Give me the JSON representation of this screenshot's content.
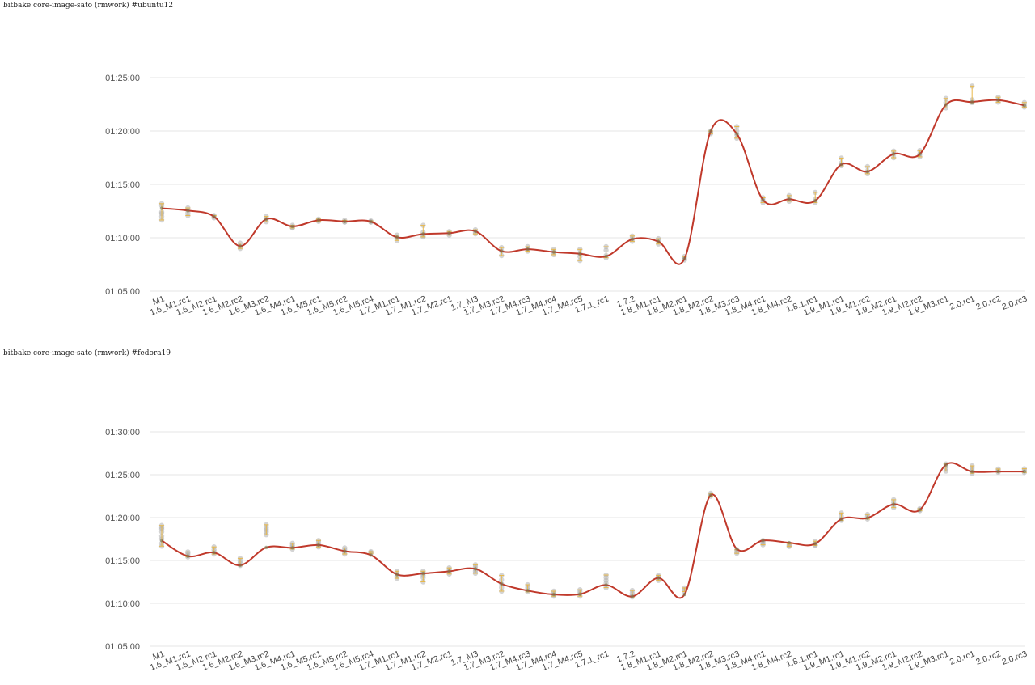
{
  "chart_data": [
    {
      "type": "line",
      "title": "bitbake core-image-sato (rmwork) #ubuntu12",
      "xlabel": "",
      "ylabel": "",
      "yticks": [
        "01:05:00",
        "01:10:00",
        "01:15:00",
        "01:20:00",
        "01:25:00"
      ],
      "ylim_seconds": [
        3900,
        5160
      ],
      "grid": true,
      "line_color": "#c0392b",
      "point_color": "#b0b0b0",
      "errorbar_color": "#e8b84a",
      "categories": [
        "M1",
        "1.6_M1.rc1",
        "1.6_M2.rc1",
        "1.6_M2.rc2",
        "1.6_M3.rc2",
        "1.6_M4.rc1",
        "1.6_M5.rc1",
        "1.6_M5.rc2",
        "1.6_M5.rc4",
        "1.7_M1.rc1",
        "1.7_M1.rc2",
        "1.7_M2.rc1",
        "1.7_M3",
        "1.7_M3.rc2",
        "1.7_M4.rc3",
        "1.7_M4.rc4",
        "1.7_M4.rc5",
        "1.7.1_rc1",
        "1.7.2",
        "1.8_M1.rc1",
        "1.8_M2.rc1",
        "1.8_M2.rc2",
        "1.8_M3.rc3",
        "1.8_M4.rc1",
        "1.8_M4.rc2",
        "1.8.1.rc1",
        "1.9_M1.rc1",
        "1.9_M1.rc2",
        "1.9_M2.rc1",
        "1.9_M2.rc2",
        "1.9_M3.rc1",
        "2.0.rc1",
        "2.0.rc2",
        "2.0.rc3"
      ],
      "series": [
        {
          "values_seconds": [
            4366,
            4353,
            4319,
            4153,
            4305,
            4264,
            4299,
            4292,
            4291,
            4203,
            4221,
            4226,
            4237,
            4125,
            4136,
            4120,
            4110,
            4096,
            4192,
            4179,
            4083,
            4799,
            4784,
            4413,
            4417,
            4408,
            4612,
            4572,
            4671,
            4670,
            4948,
            4963,
            4974,
            4944
          ],
          "samples_seconds": [
            [
              4392,
              4380,
              4345,
              4320,
              4300,
              4336
            ],
            [
              4368,
              4355,
              4340,
              4325
            ],
            [
              4325,
              4318,
              4312
            ],
            [
              4170,
              4150,
              4140
            ],
            [
              4320,
              4305,
              4290
            ],
            [
              4270,
              4260,
              4255
            ],
            [
              4305,
              4298,
              4292
            ],
            [
              4298,
              4290,
              4288
            ],
            [
              4295,
              4290,
              4288
            ],
            [
              4215,
              4200,
              4185
            ],
            [
              4270,
              4230,
              4215,
              4205
            ],
            [
              4235,
              4225,
              4215
            ],
            [
              4245,
              4232,
              4222
            ],
            [
              4145,
              4125,
              4100
            ],
            [
              4150,
              4135,
              4125
            ],
            [
              4135,
              4120,
              4105
            ],
            [
              4135,
              4112,
              4095,
              4072
            ],
            [
              4150,
              4130,
              4100,
              4088
            ],
            [
              4210,
              4195,
              4180
            ],
            [
              4195,
              4180,
              4165
            ],
            [
              4095,
              4085,
              4075
            ],
            [
              4800,
              4792,
              4785
            ],
            [
              4825,
              4800,
              4780,
              4760
            ],
            [
              4425,
              4410,
              4398
            ],
            [
              4437,
              4420,
              4405
            ],
            [
              4455,
              4415,
              4398
            ],
            [
              4648,
              4620,
              4605
            ],
            [
              4600,
              4575,
              4560
            ],
            [
              4687,
              4670,
              4650
            ],
            [
              4690,
              4670,
              4655
            ],
            [
              4983,
              4960,
              4930
            ],
            [
              5053,
              4975,
              4960
            ],
            [
              4990,
              4975,
              4962
            ],
            [
              4960,
              4945,
              4935
            ]
          ]
        }
      ]
    },
    {
      "type": "line",
      "title": "bitbake core-image-sato (rmwork) #fedora19",
      "xlabel": "",
      "ylabel": "",
      "yticks": [
        "01:05:00",
        "01:10:00",
        "01:15:00",
        "01:20:00",
        "01:25:00",
        "01:30:00"
      ],
      "ylim_seconds": [
        3900,
        5400
      ],
      "grid": true,
      "line_color": "#c0392b",
      "point_color": "#b0b0b0",
      "errorbar_color": "#e8b84a",
      "categories": [
        "M1",
        "1.6_M1.rc1",
        "1.6_M2.rc1",
        "1.6_M2.rc2",
        "1.6_M3.rc2",
        "1.6_M4.rc1",
        "1.6_M5.rc1",
        "1.6_M5.rc2",
        "1.6_M5.rc4",
        "1.7_M1.rc1",
        "1.7_M1.rc2",
        "1.7_M2.rc1",
        "1.7_M3",
        "1.7_M3.rc2",
        "1.7_M4.rc3",
        "1.7_M4.rc4",
        "1.7_M4.rc5",
        "1.7.1_rc1",
        "1.7.2",
        "1.8_M1.rc1",
        "1.8_M2.rc1",
        "1.8_M2.rc2",
        "1.8_M3.rc3",
        "1.8_M4.rc1",
        "1.8_M4.rc2",
        "1.8.1.rc1",
        "1.9_M1.rc1",
        "1.9_M1.rc2",
        "1.9_M2.rc1",
        "1.9_M2.rc2",
        "1.9_M3.rc1",
        "2.0.rc1",
        "2.0.rc2",
        "2.0.rc3"
      ],
      "series": [
        {
          "values_seconds": [
            4639,
            4530,
            4555,
            4466,
            4591,
            4589,
            4608,
            4565,
            4538,
            4402,
            4409,
            4424,
            4441,
            4336,
            4289,
            4262,
            4264,
            4328,
            4248,
            4378,
            4262,
            4957,
            4581,
            4640,
            4624,
            4617,
            4790,
            4797,
            4893,
            4854,
            5170,
            5121,
            5122,
            5122
          ],
          "samples_seconds": [
            [
              4745,
              4730,
              4720,
              4700,
              4670,
              4650,
              4620,
              4600
            ],
            [
              4560,
              4550,
              4535,
              4525
            ],
            [
              4595,
              4575,
              4560,
              4545
            ],
            [
              4515,
              4495,
              4480,
              4465
            ],
            [
              4750,
              4730,
              4715,
              4700,
              4680
            ],
            [
              4620,
              4605,
              4595,
              4580
            ],
            [
              4640,
              4625,
              4610,
              4595
            ],
            [
              4588,
              4575,
              4560,
              4545
            ],
            [
              4562,
              4555,
              4550
            ],
            [
              4425,
              4408,
              4390,
              4375
            ],
            [
              4425,
              4410,
              4395,
              4380,
              4350
            ],
            [
              4448,
              4435,
              4420,
              4405
            ],
            [
              4470,
              4455,
              4440,
              4425,
              4410
            ],
            [
              4395,
              4365,
              4335,
              4310,
              4285
            ],
            [
              4330,
              4310,
              4295,
              4280
            ],
            [
              4285,
              4270,
              4260,
              4250
            ],
            [
              4295,
              4280,
              4265,
              4250
            ],
            [
              4398,
              4380,
              4360,
              4340,
              4310
            ],
            [
              4290,
              4270,
              4255,
              4245
            ],
            [
              4395,
              4385,
              4370,
              4360
            ],
            [
              4308,
              4295,
              4282
            ],
            [
              4970,
              4960,
              4950
            ],
            [
              4575,
              4560,
              4550
            ],
            [
              4640,
              4630,
              4620,
              4610
            ],
            [
              4615,
              4605,
              4598
            ],
            [
              4635,
              4620,
              4610,
              4605
            ],
            [
              4832,
              4810,
              4790,
              4780
            ],
            [
              4822,
              4805,
              4790
            ],
            [
              4925,
              4905,
              4890,
              4870
            ],
            [
              4862,
              4855,
              4848
            ],
            [
              5175,
              5160,
              5145,
              5125
            ],
            [
              5162,
              5145,
              5130,
              5110
            ],
            [
              5140,
              5128,
              5118
            ],
            [
              5142,
              5128,
              5116
            ]
          ]
        }
      ]
    }
  ]
}
